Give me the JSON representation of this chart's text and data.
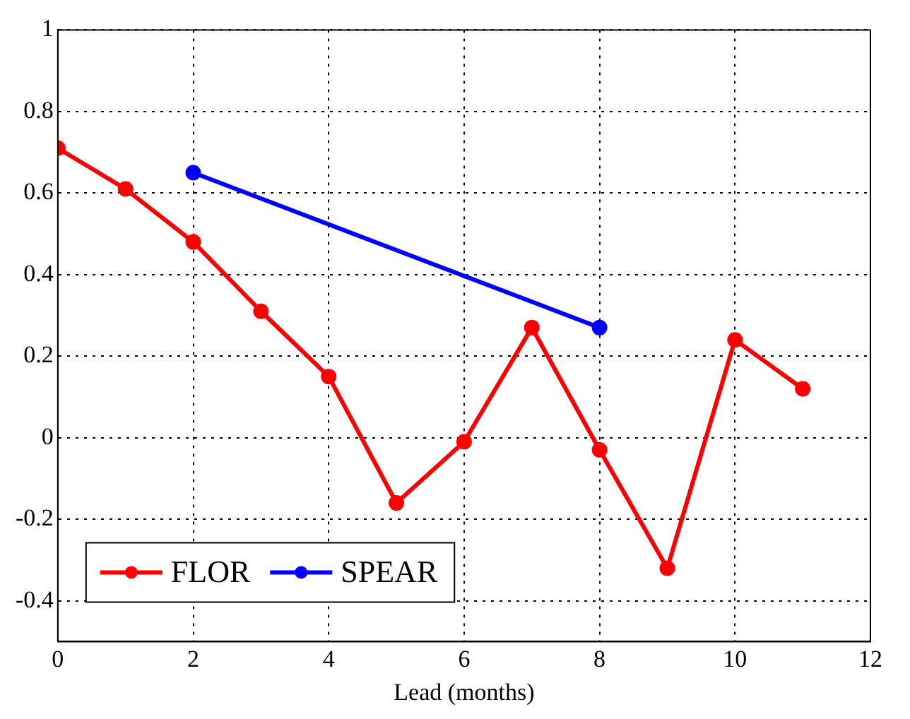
{
  "chart_data": {
    "type": "line",
    "xlabel": "Lead (months)",
    "xlim": [
      0,
      12
    ],
    "xticks": [
      0,
      2,
      4,
      6,
      8,
      10,
      12
    ],
    "ylim": [
      -0.5,
      1
    ],
    "yticks": [
      -0.4,
      -0.2,
      0,
      0.2,
      0.4,
      0.6,
      0.8,
      1
    ],
    "grid": true,
    "legend": "bottom left",
    "marker": "circle",
    "line_style": "solid",
    "series": [
      {
        "name": "FLOR",
        "color": "#ff0000",
        "x": [
          0,
          1,
          2,
          3,
          4,
          5,
          6,
          7,
          8,
          9,
          10,
          11
        ],
        "values": [
          0.71,
          0.61,
          0.48,
          0.31,
          0.15,
          -0.16,
          -0.01,
          0.27,
          -0.03,
          -0.32,
          0.24,
          0.12
        ]
      },
      {
        "name": "SPEAR",
        "color": "#0000ff",
        "x": [
          2,
          8
        ],
        "values": [
          0.65,
          0.27
        ]
      }
    ]
  }
}
